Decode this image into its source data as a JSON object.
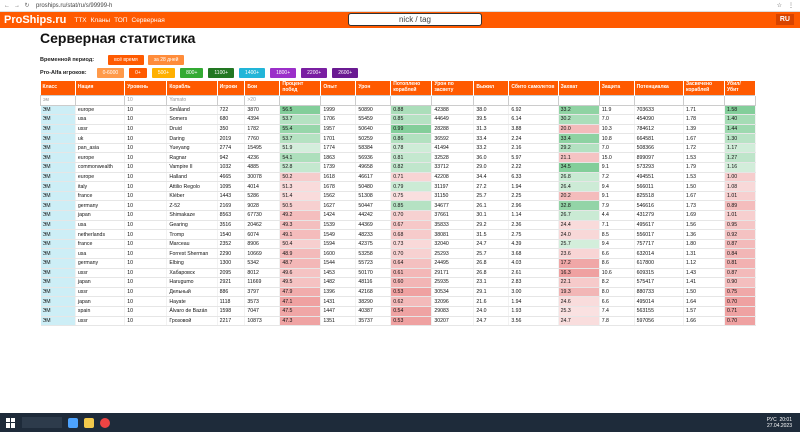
{
  "browser": {
    "url": "proships.ru/stat/ru/s/99999-h"
  },
  "header": {
    "logo": "ProShips.ru",
    "nav": [
      "ТТХ",
      "Кланы",
      "ТОП",
      "Серверная"
    ],
    "search_placeholder": "nick / tag",
    "lang": "RU"
  },
  "page": {
    "title": "Серверная статистика"
  },
  "period": {
    "label": "Временной период:",
    "options": [
      {
        "label": "всё время",
        "color": "#ff5a00"
      },
      {
        "label": "за 28 дней",
        "color": "#ff8c3a"
      }
    ]
  },
  "skill": {
    "label": "Pro-Alfa игроков:",
    "options": [
      {
        "label": "0-6000",
        "color": "#ff9a4a"
      },
      {
        "label": "0+",
        "color": "#ff5a00"
      },
      {
        "label": "500+",
        "color": "#ffb000"
      },
      {
        "label": "800+",
        "color": "#33aa33"
      },
      {
        "label": "1100+",
        "color": "#227722"
      },
      {
        "label": "1400+",
        "color": "#22b5d8"
      },
      {
        "label": "1800+",
        "color": "#9b2fc9"
      },
      {
        "label": "2200+",
        "color": "#7a1fa2"
      },
      {
        "label": "2600+",
        "color": "#6a1a92"
      }
    ]
  },
  "table": {
    "headers": [
      "Класс",
      "Нация",
      "Уровень",
      "Корабль",
      "Игроки",
      "Бои",
      "Процент побед",
      "Опыт",
      "Урон",
      "Потоплено кораблей",
      "Урон по засвету",
      "Выжил",
      "Сбито самолетов",
      "Захват",
      "Защита",
      "Потенциалка",
      "Засвечено кораблей",
      "Убил/ Убит"
    ],
    "filters": [
      "эм",
      "",
      "10",
      "Yamato",
      "",
      ">20",
      "",
      "",
      "",
      "",
      "",
      "",
      "",
      "",
      "",
      "",
      "",
      ""
    ],
    "rows": [
      [
        "ЭМ",
        "europe",
        "10",
        "Småland",
        "722",
        "3870",
        "56.5",
        "1999",
        "50890",
        "0.88",
        "42388",
        "38.0",
        "6.92",
        "33.2",
        "11.9",
        "703633",
        "1.71",
        "1.58"
      ],
      [
        "ЭМ",
        "usa",
        "10",
        "Somers",
        "680",
        "4394",
        "53.7",
        "1706",
        "55459",
        "0.85",
        "44649",
        "39.5",
        "6.14",
        "30.2",
        "7.0",
        "454090",
        "1.78",
        "1.40"
      ],
      [
        "ЭМ",
        "ussr",
        "10",
        "Druid",
        "350",
        "1782",
        "55.4",
        "1957",
        "50640",
        "0.99",
        "28288",
        "31.3",
        "3.88",
        "20.0",
        "10.3",
        "784612",
        "1.39",
        "1.44"
      ],
      [
        "ЭМ",
        "uk",
        "10",
        "Daring",
        "2019",
        "7760",
        "53.7",
        "1701",
        "50259",
        "0.86",
        "36592",
        "33.4",
        "2.24",
        "33.4",
        "10.8",
        "664581",
        "1.67",
        "1.30"
      ],
      [
        "ЭМ",
        "pan_asia",
        "10",
        "Yueyang",
        "2774",
        "15495",
        "51.9",
        "1774",
        "58384",
        "0.78",
        "41494",
        "33.2",
        "2.16",
        "29.2",
        "7.0",
        "508366",
        "1.72",
        "1.17"
      ],
      [
        "ЭМ",
        "europe",
        "10",
        "Ragnar",
        "942",
        "4236",
        "54.1",
        "1863",
        "56936",
        "0.81",
        "32528",
        "36.0",
        "5.97",
        "21.1",
        "15.0",
        "899097",
        "1.53",
        "1.27"
      ],
      [
        "ЭМ",
        "commonwealth",
        "10",
        "Vampire II",
        "1032",
        "4885",
        "52.8",
        "1739",
        "49658",
        "0.82",
        "33712",
        "29.0",
        "2.22",
        "34.5",
        "9.1",
        "573293",
        "1.79",
        "1.16"
      ],
      [
        "ЭМ",
        "europe",
        "10",
        "Halland",
        "4665",
        "30078",
        "50.2",
        "1618",
        "46617",
        "0.71",
        "42208",
        "34.4",
        "6.33",
        "26.8",
        "7.2",
        "494551",
        "1.53",
        "1.00"
      ],
      [
        "ЭМ",
        "italy",
        "10",
        "Attilio Regolo",
        "1095",
        "4014",
        "51.3",
        "1678",
        "50480",
        "0.79",
        "31197",
        "27.2",
        "1.94",
        "26.4",
        "9.4",
        "566011",
        "1.50",
        "1.08"
      ],
      [
        "ЭМ",
        "france",
        "10",
        "Kléber",
        "1443",
        "5286",
        "51.4",
        "1562",
        "51308",
        "0.75",
        "31150",
        "25.7",
        "2.25",
        "20.2",
        "9.1",
        "825518",
        "1.67",
        "1.01"
      ],
      [
        "ЭМ",
        "germany",
        "10",
        "Z-52",
        "2169",
        "9028",
        "50.5",
        "1627",
        "50447",
        "0.85",
        "34677",
        "26.1",
        "2.96",
        "32.8",
        "7.9",
        "546616",
        "1.73",
        "0.89"
      ],
      [
        "ЭМ",
        "japan",
        "10",
        "Shimakaze",
        "8563",
        "67730",
        "49.2",
        "1424",
        "44242",
        "0.70",
        "37661",
        "30.1",
        "1.14",
        "26.7",
        "4.4",
        "431279",
        "1.69",
        "1.01"
      ],
      [
        "ЭМ",
        "usa",
        "10",
        "Gearing",
        "3516",
        "20462",
        "49.3",
        "1539",
        "44369",
        "0.67",
        "35833",
        "29.2",
        "2.36",
        "24.4",
        "7.1",
        "495617",
        "1.56",
        "0.95"
      ],
      [
        "ЭМ",
        "netherlands",
        "10",
        "Tromp",
        "1540",
        "6074",
        "49.1",
        "1549",
        "48233",
        "0.68",
        "38081",
        "31.5",
        "2.75",
        "24.0",
        "8.5",
        "556017",
        "1.36",
        "0.92"
      ],
      [
        "ЭМ",
        "france",
        "10",
        "Marceau",
        "2352",
        "8906",
        "50.4",
        "1594",
        "42375",
        "0.73",
        "32040",
        "24.7",
        "4.39",
        "25.7",
        "9.4",
        "757717",
        "1.80",
        "0.87"
      ],
      [
        "ЭМ",
        "usa",
        "10",
        "Forrest Sherman",
        "2290",
        "10669",
        "48.9",
        "1600",
        "53258",
        "0.70",
        "25293",
        "25.7",
        "3.68",
        "23.6",
        "6.6",
        "632014",
        "1.31",
        "0.84"
      ],
      [
        "ЭМ",
        "germany",
        "10",
        "Elbing",
        "1300",
        "5342",
        "48.7",
        "1544",
        "55723",
        "0.64",
        "24495",
        "26.8",
        "4.03",
        "17.2",
        "8.6",
        "617800",
        "1.12",
        "0.81"
      ],
      [
        "ЭМ",
        "ussr",
        "10",
        "Хабаровск",
        "2095",
        "8012",
        "49.6",
        "1453",
        "50170",
        "0.61",
        "29171",
        "26.8",
        "2.61",
        "16.3",
        "10.6",
        "609315",
        "1.43",
        "0.87"
      ],
      [
        "ЭМ",
        "japan",
        "10",
        "Harugumo",
        "2921",
        "11669",
        "49.5",
        "1482",
        "48116",
        "0.60",
        "25935",
        "23.1",
        "2.83",
        "22.1",
        "8.2",
        "575417",
        "1.41",
        "0.90"
      ],
      [
        "ЭМ",
        "ussr",
        "10",
        "Дельный",
        "886",
        "3797",
        "47.9",
        "1396",
        "42168",
        "0.53",
        "30534",
        "29.1",
        "3.00",
        "19.3",
        "8.0",
        "880733",
        "1.50",
        "0.75"
      ],
      [
        "ЭМ",
        "japan",
        "10",
        "Hayate",
        "1118",
        "3573",
        "47.1",
        "1431",
        "38290",
        "0.62",
        "32096",
        "21.6",
        "1.94",
        "24.6",
        "6.6",
        "495014",
        "1.64",
        "0.70"
      ],
      [
        "ЭМ",
        "spain",
        "10",
        "Álvaro de Bazán",
        "1598",
        "7047",
        "47.5",
        "1447",
        "40387",
        "0.54",
        "29083",
        "24.0",
        "1.93",
        "25.3",
        "7.4",
        "563155",
        "1.57",
        "0.71"
      ],
      [
        "ЭМ",
        "ussr",
        "10",
        "Грозовой",
        "2217",
        "10873",
        "47.3",
        "1351",
        "35737",
        "0.53",
        "30207",
        "24.7",
        "3.56",
        "24.7",
        "7.8",
        "597056",
        "1.66",
        "0.70"
      ]
    ]
  },
  "taskbar": {
    "time": "20:01",
    "date": "27.04.2023",
    "lang": "РУС"
  }
}
